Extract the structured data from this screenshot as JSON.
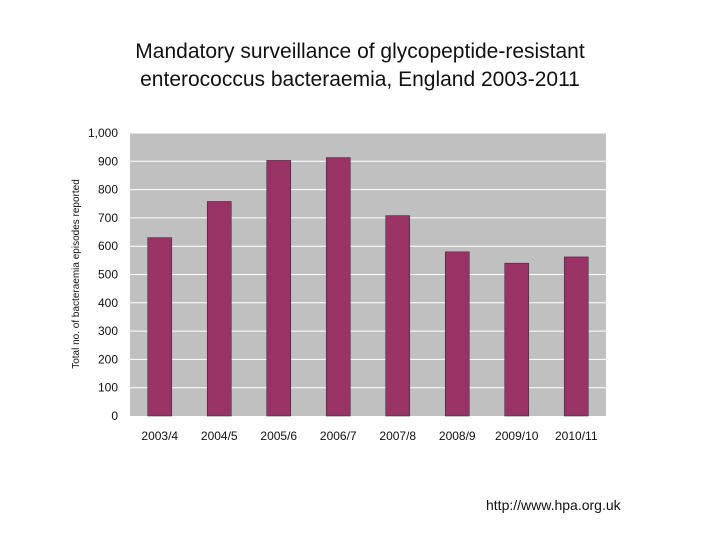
{
  "slide": {
    "title_line1": "Mandatory surveillance of glycopeptide-resistant",
    "title_line2": "enterococcus bacteraemia, England 2003-2011",
    "source": "http://www.hpa.org.uk"
  },
  "chart_data": {
    "type": "bar",
    "categories": [
      "2003/4",
      "2004/5",
      "2005/6",
      "2006/7",
      "2007/8",
      "2008/9",
      "2009/10",
      "2010/11"
    ],
    "values": [
      630,
      758,
      903,
      913,
      708,
      580,
      540,
      562
    ],
    "ylabel": "Total no. of bacteraemia episodes reported",
    "xlabel": "",
    "ylim": [
      0,
      1000
    ],
    "yticks": [
      0,
      100,
      200,
      300,
      400,
      500,
      600,
      700,
      800,
      900,
      1000
    ],
    "ytick_labels": [
      "0",
      "100",
      "200",
      "300",
      "400",
      "500",
      "600",
      "700",
      "800",
      "900",
      "1,000"
    ],
    "grid": true,
    "legend": "none",
    "colors": {
      "bar": "#993366",
      "plot_background": "#c0c0c0",
      "grid": "#ffffff"
    }
  }
}
